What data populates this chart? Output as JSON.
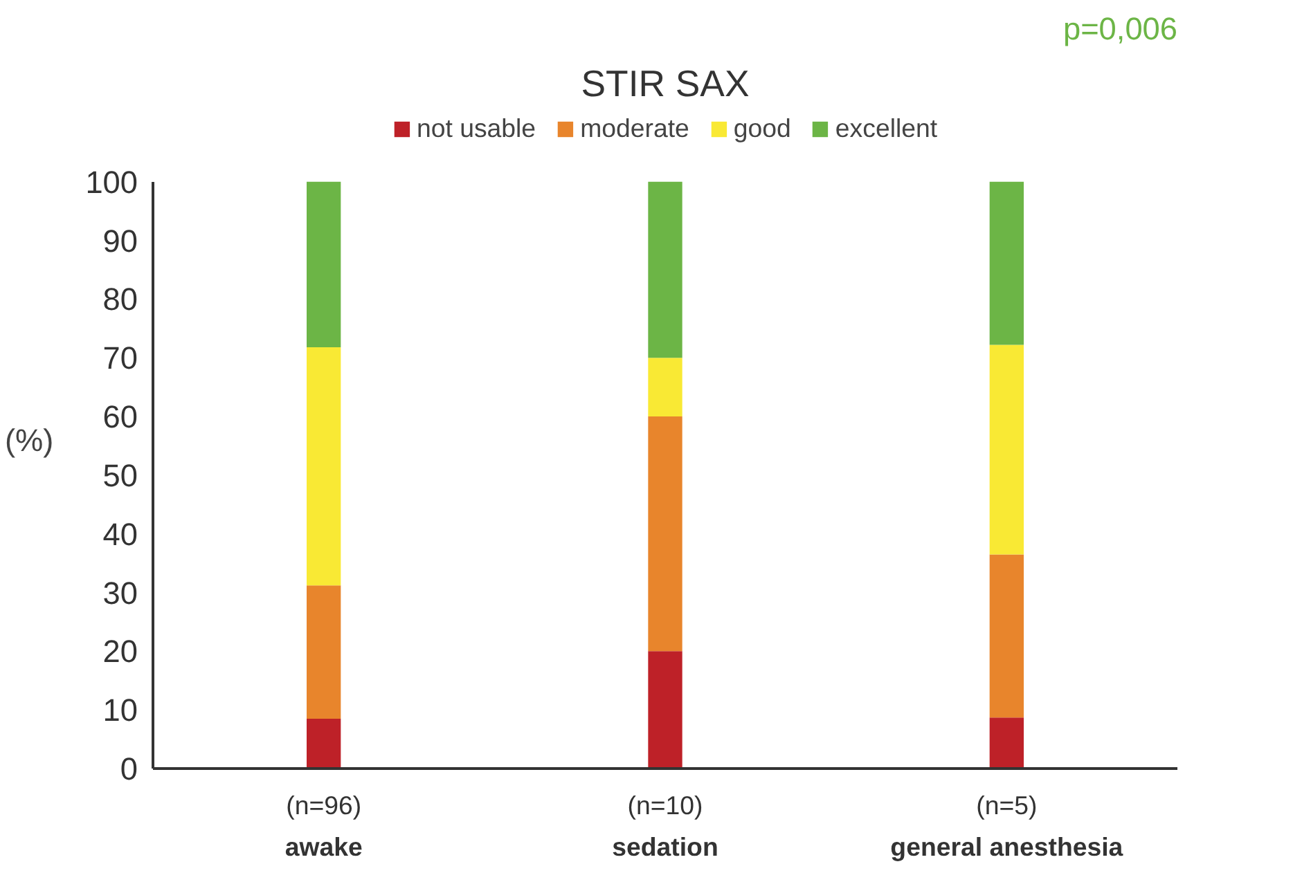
{
  "chart_data": {
    "type": "bar",
    "stacked": true,
    "title": "STIR SAX",
    "ylabel": "(%)",
    "categories": [
      "(n=96)\nawake",
      "(n=10)\nsedation",
      "(n=5)\ngeneral anesthesia"
    ],
    "series": [
      {
        "name": "not usable",
        "color": "#be2128",
        "values": [
          8.5,
          20,
          8.7
        ]
      },
      {
        "name": "moderate",
        "color": "#e8852c",
        "values": [
          22.7,
          40,
          27.8
        ]
      },
      {
        "name": "good",
        "color": "#f9e934",
        "values": [
          40.6,
          10,
          35.7
        ]
      },
      {
        "name": "excellent",
        "color": "#6cb546",
        "values": [
          28.2,
          30,
          27.8
        ]
      }
    ],
    "ylim": [
      0,
      100
    ],
    "yticks": [
      0,
      10,
      20,
      30,
      40,
      50,
      60,
      70,
      80,
      90,
      100
    ],
    "grid": false,
    "legend": "top",
    "annotations": [
      "p=0,006"
    ]
  }
}
